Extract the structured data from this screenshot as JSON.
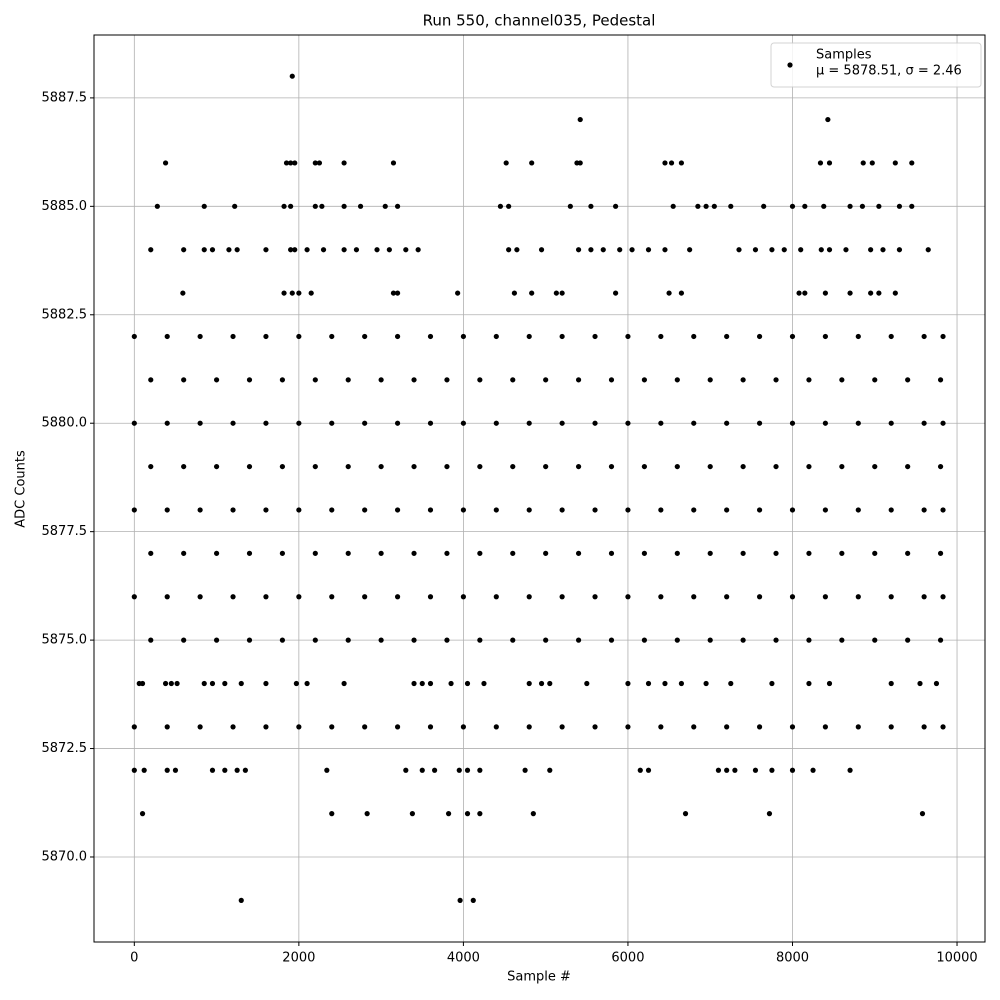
{
  "chart_data": {
    "type": "scatter",
    "title": "Run 550, channel035, Pedestal",
    "xlabel": "Sample #",
    "ylabel": "ADC Counts",
    "xlim": [
      -490,
      10340
    ],
    "xticks": [
      0,
      2000,
      4000,
      6000,
      8000,
      10000
    ],
    "ylim": [
      5868.04,
      5888.95
    ],
    "yticks": [
      {
        "value": 5870,
        "label": "5870.0"
      },
      5872.5,
      {
        "value": 5875,
        "label": "5875.0"
      },
      5877.5,
      {
        "value": 5880,
        "label": "5880.0"
      },
      5882.5,
      {
        "value": 5885,
        "label": "5885.0"
      },
      5887.5
    ],
    "grid": true,
    "legend": "upper right",
    "legend_note": "μ = 5878.51, σ = 2.46",
    "x": [
      1920,
      5420,
      8430,
      380,
      1850,
      1900,
      1950,
      2200,
      2250,
      2550,
      3150,
      4520,
      4830,
      5380,
      5420,
      6450,
      6530,
      6650,
      8340,
      8450,
      8860,
      8970,
      9250,
      9450,
      280,
      850,
      1220,
      1820,
      1900,
      2200,
      2280,
      2550,
      2750,
      3050,
      3200,
      4450,
      4550,
      5300,
      5550,
      5850,
      6550,
      6850,
      6950,
      7050,
      7250,
      7650,
      8000,
      8150,
      8380,
      8700,
      8850,
      9050,
      9300,
      9450,
      200,
      600,
      850,
      950,
      1150,
      1250,
      1600,
      1900,
      1950,
      2100,
      2300,
      2550,
      2700,
      2950,
      3100,
      3300,
      3450,
      4550,
      4650,
      4950,
      5400,
      5550,
      5700,
      5900,
      6050,
      6250,
      6450,
      6750,
      7350,
      7550,
      7750,
      7900,
      8100,
      8350,
      8450,
      8650,
      8950,
      9100,
      9300,
      9650,
      590,
      1820,
      1920,
      2000,
      2150,
      3150,
      3200,
      3930,
      4620,
      4830,
      5130,
      5200,
      5850,
      6500,
      6650,
      8080,
      8150,
      8400,
      8700,
      8950,
      9050,
      9250,
      0,
      400,
      800,
      1200,
      1600,
      2000,
      2400,
      2800,
      3200,
      3600,
      4000,
      4400,
      4800,
      5200,
      5600,
      6000,
      6400,
      6800,
      7200,
      7600,
      8000,
      8400,
      8800,
      9200,
      9600,
      9830,
      200,
      600,
      1000,
      1400,
      1800,
      2200,
      2600,
      3000,
      3400,
      3800,
      4200,
      4600,
      5000,
      5400,
      5800,
      6200,
      6600,
      7000,
      7400,
      7800,
      8200,
      8600,
      9000,
      9400,
      9800,
      0,
      400,
      800,
      1200,
      1600,
      2000,
      2400,
      2800,
      3200,
      3600,
      4000,
      4400,
      4800,
      5200,
      5600,
      6000,
      6400,
      6800,
      7200,
      7600,
      8000,
      8400,
      8800,
      9200,
      9600,
      9830,
      200,
      600,
      1000,
      1400,
      1800,
      2200,
      2600,
      3000,
      3400,
      3800,
      4200,
      4600,
      5000,
      5400,
      5800,
      6200,
      6600,
      7000,
      7400,
      7800,
      8200,
      8600,
      9000,
      9400,
      9800,
      0,
      400,
      800,
      1200,
      1600,
      2000,
      2400,
      2800,
      3200,
      3600,
      4000,
      4400,
      4800,
      5200,
      5600,
      6000,
      6400,
      6800,
      7200,
      7600,
      8000,
      8400,
      8800,
      9200,
      9600,
      9830,
      200,
      600,
      1000,
      1400,
      1800,
      2200,
      2600,
      3000,
      3400,
      3800,
      4200,
      4600,
      5000,
      5400,
      5800,
      6200,
      6600,
      7000,
      7400,
      7800,
      8200,
      8600,
      9000,
      9400,
      9800,
      0,
      400,
      800,
      1200,
      1600,
      2000,
      2400,
      2800,
      3200,
      3600,
      4000,
      4400,
      4800,
      5200,
      5600,
      6000,
      6400,
      6800,
      7200,
      7600,
      8000,
      8400,
      8800,
      9200,
      9600,
      9830,
      200,
      600,
      1000,
      1400,
      1800,
      2200,
      2600,
      3000,
      3400,
      3800,
      4200,
      4600,
      5000,
      5400,
      5800,
      6200,
      6600,
      7000,
      7400,
      7800,
      8200,
      8600,
      9000,
      9400,
      9800,
      60,
      100,
      380,
      450,
      520,
      850,
      950,
      1100,
      1300,
      1600,
      1970,
      2100,
      2550,
      3400,
      3500,
      3600,
      3850,
      4050,
      4250,
      4800,
      4950,
      5050,
      5500,
      6000,
      6250,
      6450,
      6650,
      6950,
      7250,
      7750,
      8200,
      8450,
      9200,
      9550,
      9750,
      0,
      400,
      800,
      1200,
      1600,
      2000,
      2400,
      2800,
      3200,
      3600,
      4000,
      4400,
      4800,
      5200,
      5600,
      6000,
      6400,
      6800,
      7200,
      7600,
      8000,
      8400,
      8800,
      9200,
      9600,
      9830,
      0,
      120,
      400,
      500,
      950,
      1100,
      1250,
      1350,
      2340,
      3300,
      3500,
      3650,
      3950,
      4050,
      4200,
      4750,
      5050,
      6150,
      6250,
      7100,
      7200,
      7300,
      7550,
      7750,
      8000,
      8250,
      8700,
      100,
      2400,
      2830,
      3380,
      3820,
      4050,
      4200,
      4850,
      6700,
      7720,
      9580,
      1300,
      3960,
      4120
    ],
    "series": [
      {
        "name": "Samples",
        "color": "#000000",
        "values": [
          5888,
          5887,
          5887,
          5886,
          5886,
          5886,
          5886,
          5886,
          5886,
          5886,
          5886,
          5886,
          5886,
          5886,
          5886,
          5886,
          5886,
          5886,
          5886,
          5886,
          5886,
          5886,
          5886,
          5886,
          5885,
          5885,
          5885,
          5885,
          5885,
          5885,
          5885,
          5885,
          5885,
          5885,
          5885,
          5885,
          5885,
          5885,
          5885,
          5885,
          5885,
          5885,
          5885,
          5885,
          5885,
          5885,
          5885,
          5885,
          5885,
          5885,
          5885,
          5885,
          5885,
          5885,
          5884,
          5884,
          5884,
          5884,
          5884,
          5884,
          5884,
          5884,
          5884,
          5884,
          5884,
          5884,
          5884,
          5884,
          5884,
          5884,
          5884,
          5884,
          5884,
          5884,
          5884,
          5884,
          5884,
          5884,
          5884,
          5884,
          5884,
          5884,
          5884,
          5884,
          5884,
          5884,
          5884,
          5884,
          5884,
          5884,
          5884,
          5884,
          5884,
          5884,
          5883,
          5883,
          5883,
          5883,
          5883,
          5883,
          5883,
          5883,
          5883,
          5883,
          5883,
          5883,
          5883,
          5883,
          5883,
          5883,
          5883,
          5883,
          5883,
          5883,
          5883,
          5883,
          5882,
          5882,
          5882,
          5882,
          5882,
          5882,
          5882,
          5882,
          5882,
          5882,
          5882,
          5882,
          5882,
          5882,
          5882,
          5882,
          5882,
          5882,
          5882,
          5882,
          5882,
          5882,
          5882,
          5882,
          5882,
          5882,
          5881,
          5881,
          5881,
          5881,
          5881,
          5881,
          5881,
          5881,
          5881,
          5881,
          5881,
          5881,
          5881,
          5881,
          5881,
          5881,
          5881,
          5881,
          5881,
          5881,
          5881,
          5881,
          5881,
          5881,
          5881,
          5880,
          5880,
          5880,
          5880,
          5880,
          5880,
          5880,
          5880,
          5880,
          5880,
          5880,
          5880,
          5880,
          5880,
          5880,
          5880,
          5880,
          5880,
          5880,
          5880,
          5880,
          5880,
          5880,
          5880,
          5880,
          5880,
          5879,
          5879,
          5879,
          5879,
          5879,
          5879,
          5879,
          5879,
          5879,
          5879,
          5879,
          5879,
          5879,
          5879,
          5879,
          5879,
          5879,
          5879,
          5879,
          5879,
          5879,
          5879,
          5879,
          5879,
          5879,
          5878,
          5878,
          5878,
          5878,
          5878,
          5878,
          5878,
          5878,
          5878,
          5878,
          5878,
          5878,
          5878,
          5878,
          5878,
          5878,
          5878,
          5878,
          5878,
          5878,
          5878,
          5878,
          5878,
          5878,
          5878,
          5878,
          5877,
          5877,
          5877,
          5877,
          5877,
          5877,
          5877,
          5877,
          5877,
          5877,
          5877,
          5877,
          5877,
          5877,
          5877,
          5877,
          5877,
          5877,
          5877,
          5877,
          5877,
          5877,
          5877,
          5877,
          5877,
          5876,
          5876,
          5876,
          5876,
          5876,
          5876,
          5876,
          5876,
          5876,
          5876,
          5876,
          5876,
          5876,
          5876,
          5876,
          5876,
          5876,
          5876,
          5876,
          5876,
          5876,
          5876,
          5876,
          5876,
          5876,
          5876,
          5875,
          5875,
          5875,
          5875,
          5875,
          5875,
          5875,
          5875,
          5875,
          5875,
          5875,
          5875,
          5875,
          5875,
          5875,
          5875,
          5875,
          5875,
          5875,
          5875,
          5875,
          5875,
          5875,
          5875,
          5875,
          5874,
          5874,
          5874,
          5874,
          5874,
          5874,
          5874,
          5874,
          5874,
          5874,
          5874,
          5874,
          5874,
          5874,
          5874,
          5874,
          5874,
          5874,
          5874,
          5874,
          5874,
          5874,
          5874,
          5874,
          5874,
          5874,
          5874,
          5874,
          5874,
          5874,
          5874,
          5874,
          5874,
          5874,
          5874,
          5873,
          5873,
          5873,
          5873,
          5873,
          5873,
          5873,
          5873,
          5873,
          5873,
          5873,
          5873,
          5873,
          5873,
          5873,
          5873,
          5873,
          5873,
          5873,
          5873,
          5873,
          5873,
          5873,
          5873,
          5873,
          5873,
          5872,
          5872,
          5872,
          5872,
          5872,
          5872,
          5872,
          5872,
          5872,
          5872,
          5872,
          5872,
          5872,
          5872,
          5872,
          5872,
          5872,
          5872,
          5872,
          5872,
          5872,
          5872,
          5872,
          5872,
          5872,
          5872,
          5872,
          5871,
          5871,
          5871,
          5871,
          5871,
          5871,
          5871,
          5871,
          5871,
          5871,
          5871,
          5869,
          5869,
          5869
        ]
      }
    ]
  }
}
